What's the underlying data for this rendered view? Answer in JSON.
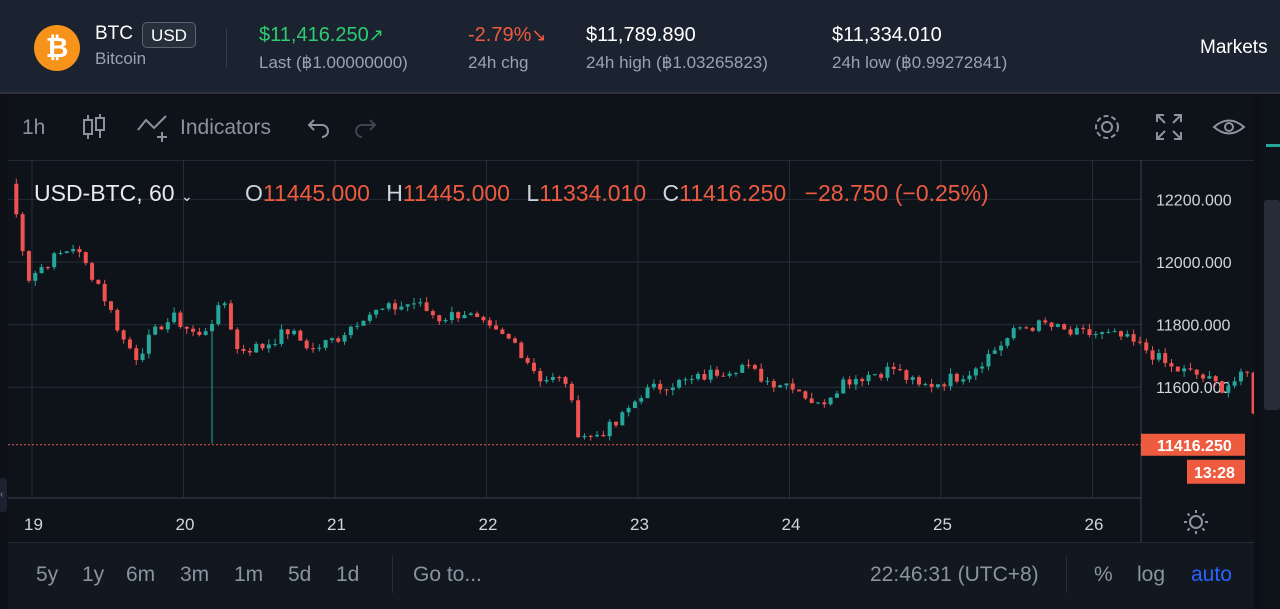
{
  "header": {
    "symbol": "BTC",
    "currency": "USD",
    "name": "Bitcoin",
    "logo_glyph": "₿",
    "last_value": "$11,416.250",
    "last_arrow": "↗",
    "last_label": "Last  (฿1.00000000)",
    "chg_value": "-2.79%",
    "chg_arrow": "↘",
    "chg_label": "24h chg",
    "high_value": "$11,789.890",
    "high_label": "24h high  (฿1.03265823)",
    "low_value": "$11,334.010",
    "low_label": "24h low  (฿0.99272841)",
    "markets": "Markets"
  },
  "toolbar": {
    "interval": "1h",
    "indicators": "Indicators"
  },
  "legend": {
    "pair": "USD-BTC, 60",
    "o_label": "O",
    "o_value": "11445.000",
    "h_label": "H",
    "h_value": "11445.000",
    "l_label": "L",
    "l_value": "11334.010",
    "c_label": "C",
    "c_value": "11416.250",
    "change": "−28.750 (−0.25%)"
  },
  "bottom": {
    "ranges": [
      "5y",
      "1y",
      "6m",
      "3m",
      "1m",
      "5d",
      "1d"
    ],
    "goto": "Go to...",
    "time": "22:46:31 (UTC+8)",
    "percent": "%",
    "log": "log",
    "auto": "auto"
  },
  "colors": {
    "up": "#26a69a",
    "down": "#ef5350",
    "up_text": "#2ecc71",
    "down_text": "#ee5b3f",
    "accent": "#2962ff"
  },
  "chart_data": {
    "type": "candlestick",
    "yticks": [
      "12200.000",
      "12000.000",
      "11800.000",
      "11600.000"
    ],
    "ytick_values": [
      12200,
      12000,
      11800,
      11600
    ],
    "xticks": [
      "19",
      "20",
      "21",
      "22",
      "23",
      "24",
      "25",
      "26"
    ],
    "ylim": [
      11320,
      12300
    ],
    "last_price_label": "11416.250",
    "last_price": 11416.25,
    "countdown": "13:28",
    "path_hours": [
      0,
      3,
      6,
      10,
      14,
      18,
      20,
      24,
      26,
      30,
      34,
      36,
      40,
      44,
      48,
      52,
      56,
      60,
      64,
      68,
      72,
      76,
      80,
      84,
      88,
      90,
      92,
      96,
      100,
      104,
      108,
      112,
      116,
      120,
      124,
      128,
      132,
      136,
      140,
      144,
      148,
      152,
      156,
      160,
      164,
      168,
      172,
      176,
      180,
      184,
      188,
      192,
      196,
      198,
      201,
      203,
      205,
      210,
      212
    ],
    "path_values": [
      12250,
      11950,
      12000,
      12050,
      11930,
      11750,
      11700,
      11800,
      11820,
      11760,
      11870,
      11720,
      11730,
      11780,
      11720,
      11760,
      11830,
      11850,
      11870,
      11820,
      11840,
      11780,
      11740,
      11630,
      11620,
      11460,
      11440,
      11480,
      11580,
      11610,
      11620,
      11650,
      11670,
      11620,
      11610,
      11540,
      11620,
      11640,
      11660,
      11600,
      11620,
      11650,
      11720,
      11790,
      11800,
      11770,
      11770,
      11760,
      11720,
      11660,
      11640,
      11600,
      11640,
      11420,
      11445,
      11445,
      11334,
      11430,
      11416
    ]
  }
}
